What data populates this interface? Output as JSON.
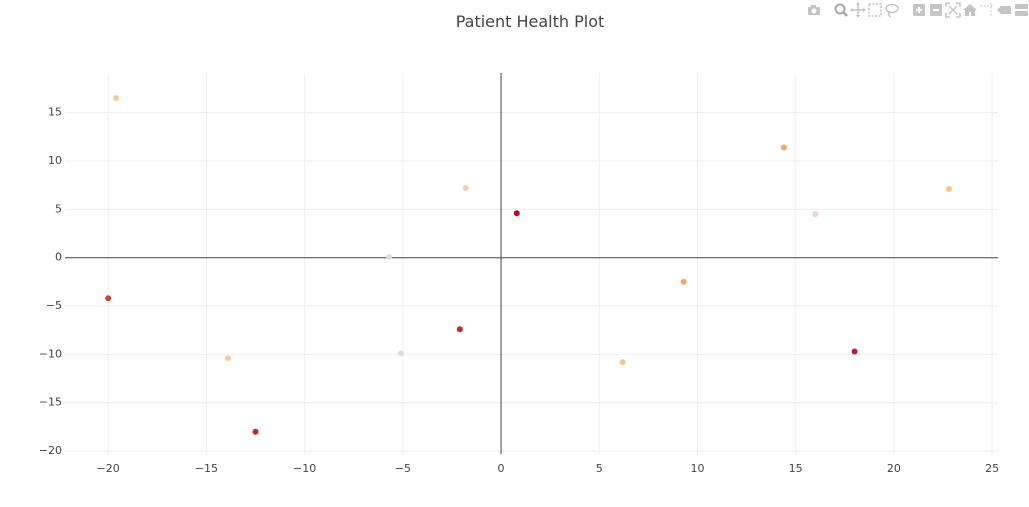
{
  "title": "Patient Health Plot",
  "modebar": {
    "icons": [
      "camera-icon",
      "zoom-icon",
      "pan-icon",
      "box-select-icon",
      "lasso-select-icon",
      "zoom-in-icon",
      "zoom-out-icon",
      "autoscale-icon",
      "reset-axes-icon",
      "spike-lines-icon",
      "hover-closest-icon",
      "hover-compare-icon"
    ]
  },
  "chart_data": {
    "type": "scatter",
    "title": "Patient Health Plot",
    "xlabel": "",
    "ylabel": "",
    "xlim": [
      -22.2,
      25.3
    ],
    "ylim": [
      -20.3,
      19.1
    ],
    "x_ticks": [
      -20,
      -15,
      -10,
      -5,
      0,
      5,
      10,
      15,
      20,
      25
    ],
    "y_ticks": [
      -20,
      -15,
      -10,
      -5,
      0,
      5,
      10,
      15
    ],
    "grid": true,
    "zero_lines": true,
    "points": [
      {
        "x": -19.6,
        "y": 16.5,
        "color": "#f5c8a0"
      },
      {
        "x": -20.0,
        "y": -4.2,
        "color": "#c9433a"
      },
      {
        "x": -13.9,
        "y": -10.4,
        "color": "#f5c8a0"
      },
      {
        "x": -12.5,
        "y": -18.0,
        "color": "#c02a2a"
      },
      {
        "x": -5.7,
        "y": 0.1,
        "color": "#dcdcdc"
      },
      {
        "x": -5.1,
        "y": -9.9,
        "color": "#dcdcdc"
      },
      {
        "x": -2.1,
        "y": -7.4,
        "color": "#c02a2a"
      },
      {
        "x": -1.8,
        "y": 7.2,
        "color": "#efd0c0"
      },
      {
        "x": 0.8,
        "y": 4.6,
        "color": "#b2101e"
      },
      {
        "x": 6.2,
        "y": -10.8,
        "color": "#f7c491"
      },
      {
        "x": 9.3,
        "y": -2.5,
        "color": "#f4a665"
      },
      {
        "x": 14.4,
        "y": 11.4,
        "color": "#f4a665"
      },
      {
        "x": 16.0,
        "y": 4.5,
        "color": "#e8d6cc"
      },
      {
        "x": 18.0,
        "y": -9.7,
        "color": "#b92025"
      },
      {
        "x": 22.8,
        "y": 7.1,
        "color": "#f7c07d"
      }
    ]
  }
}
